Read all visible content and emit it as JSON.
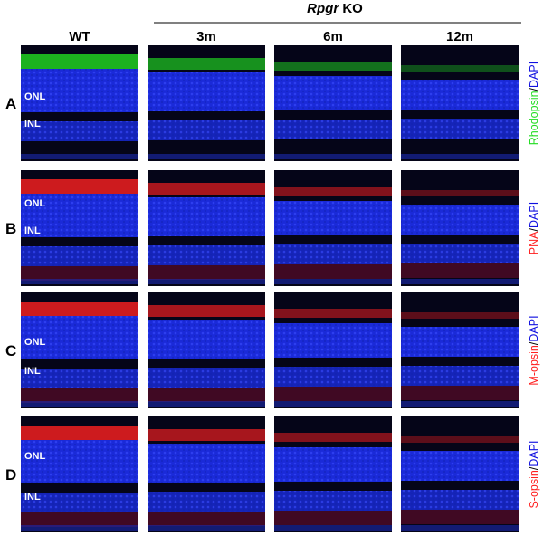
{
  "header": {
    "group": {
      "gene": "Rpgr",
      "suffix": "KO"
    },
    "columns": [
      "WT",
      "3m",
      "6m",
      "12m"
    ]
  },
  "rows": [
    {
      "letter": "A",
      "layer_labels": [
        "ONL",
        "INL"
      ],
      "stain": {
        "marker": "Rhodopsin",
        "separator": "/",
        "counterstain": "DAPI"
      }
    },
    {
      "letter": "B",
      "layer_labels": [
        "ONL",
        "INL"
      ],
      "stain": {
        "marker": "PNA",
        "separator": "/",
        "counterstain": "DAPI"
      }
    },
    {
      "letter": "C",
      "layer_labels": [
        "ONL",
        "INL"
      ],
      "stain": {
        "marker": "M-opsin",
        "separator": "/",
        "counterstain": "DAPI"
      }
    },
    {
      "letter": "D",
      "layer_labels": [
        "ONL",
        "INL"
      ],
      "stain": {
        "marker": "S-opsin",
        "separator": "/",
        "counterstain": "DAPI"
      }
    }
  ]
}
